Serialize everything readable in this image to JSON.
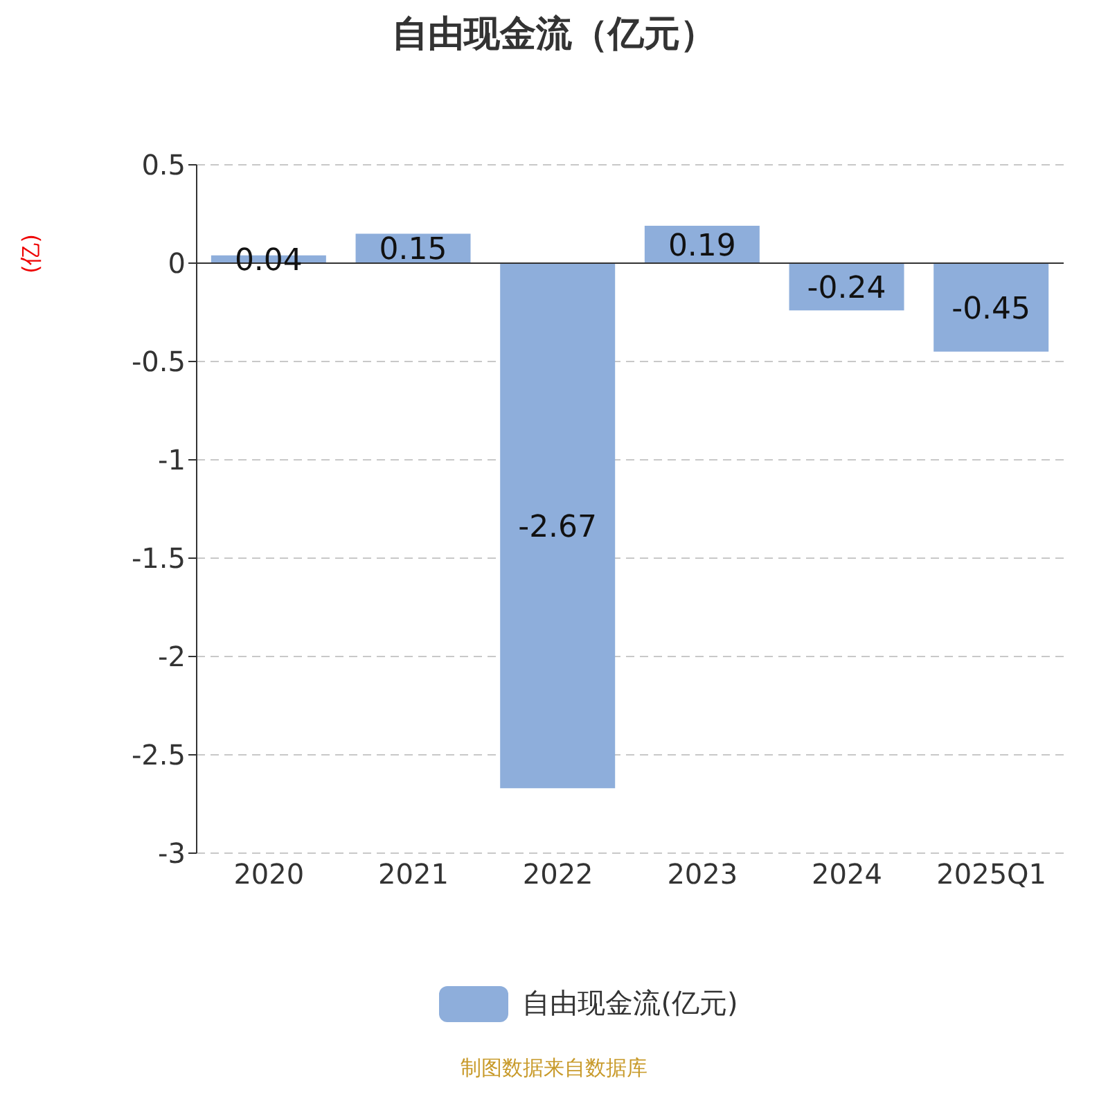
{
  "chart_data": {
    "type": "bar",
    "title": "自由现金流（亿元）",
    "ylabel": "(亿)",
    "categories": [
      "2020",
      "2021",
      "2022",
      "2023",
      "2024",
      "2025Q1"
    ],
    "series": [
      {
        "name": "自由现金流(亿元)",
        "color": "#8eaedb",
        "values": [
          0.04,
          0.15,
          -2.67,
          0.19,
          -0.24,
          -0.45
        ]
      }
    ],
    "ylim": [
      -3,
      0.5
    ],
    "yticks": [
      0.5,
      0,
      -0.5,
      -1,
      -1.5,
      -2,
      -2.5,
      -3
    ],
    "grid": "y",
    "legend": "bottom",
    "data_labels": true,
    "annotations": [
      "制图数据来自数据库"
    ]
  }
}
